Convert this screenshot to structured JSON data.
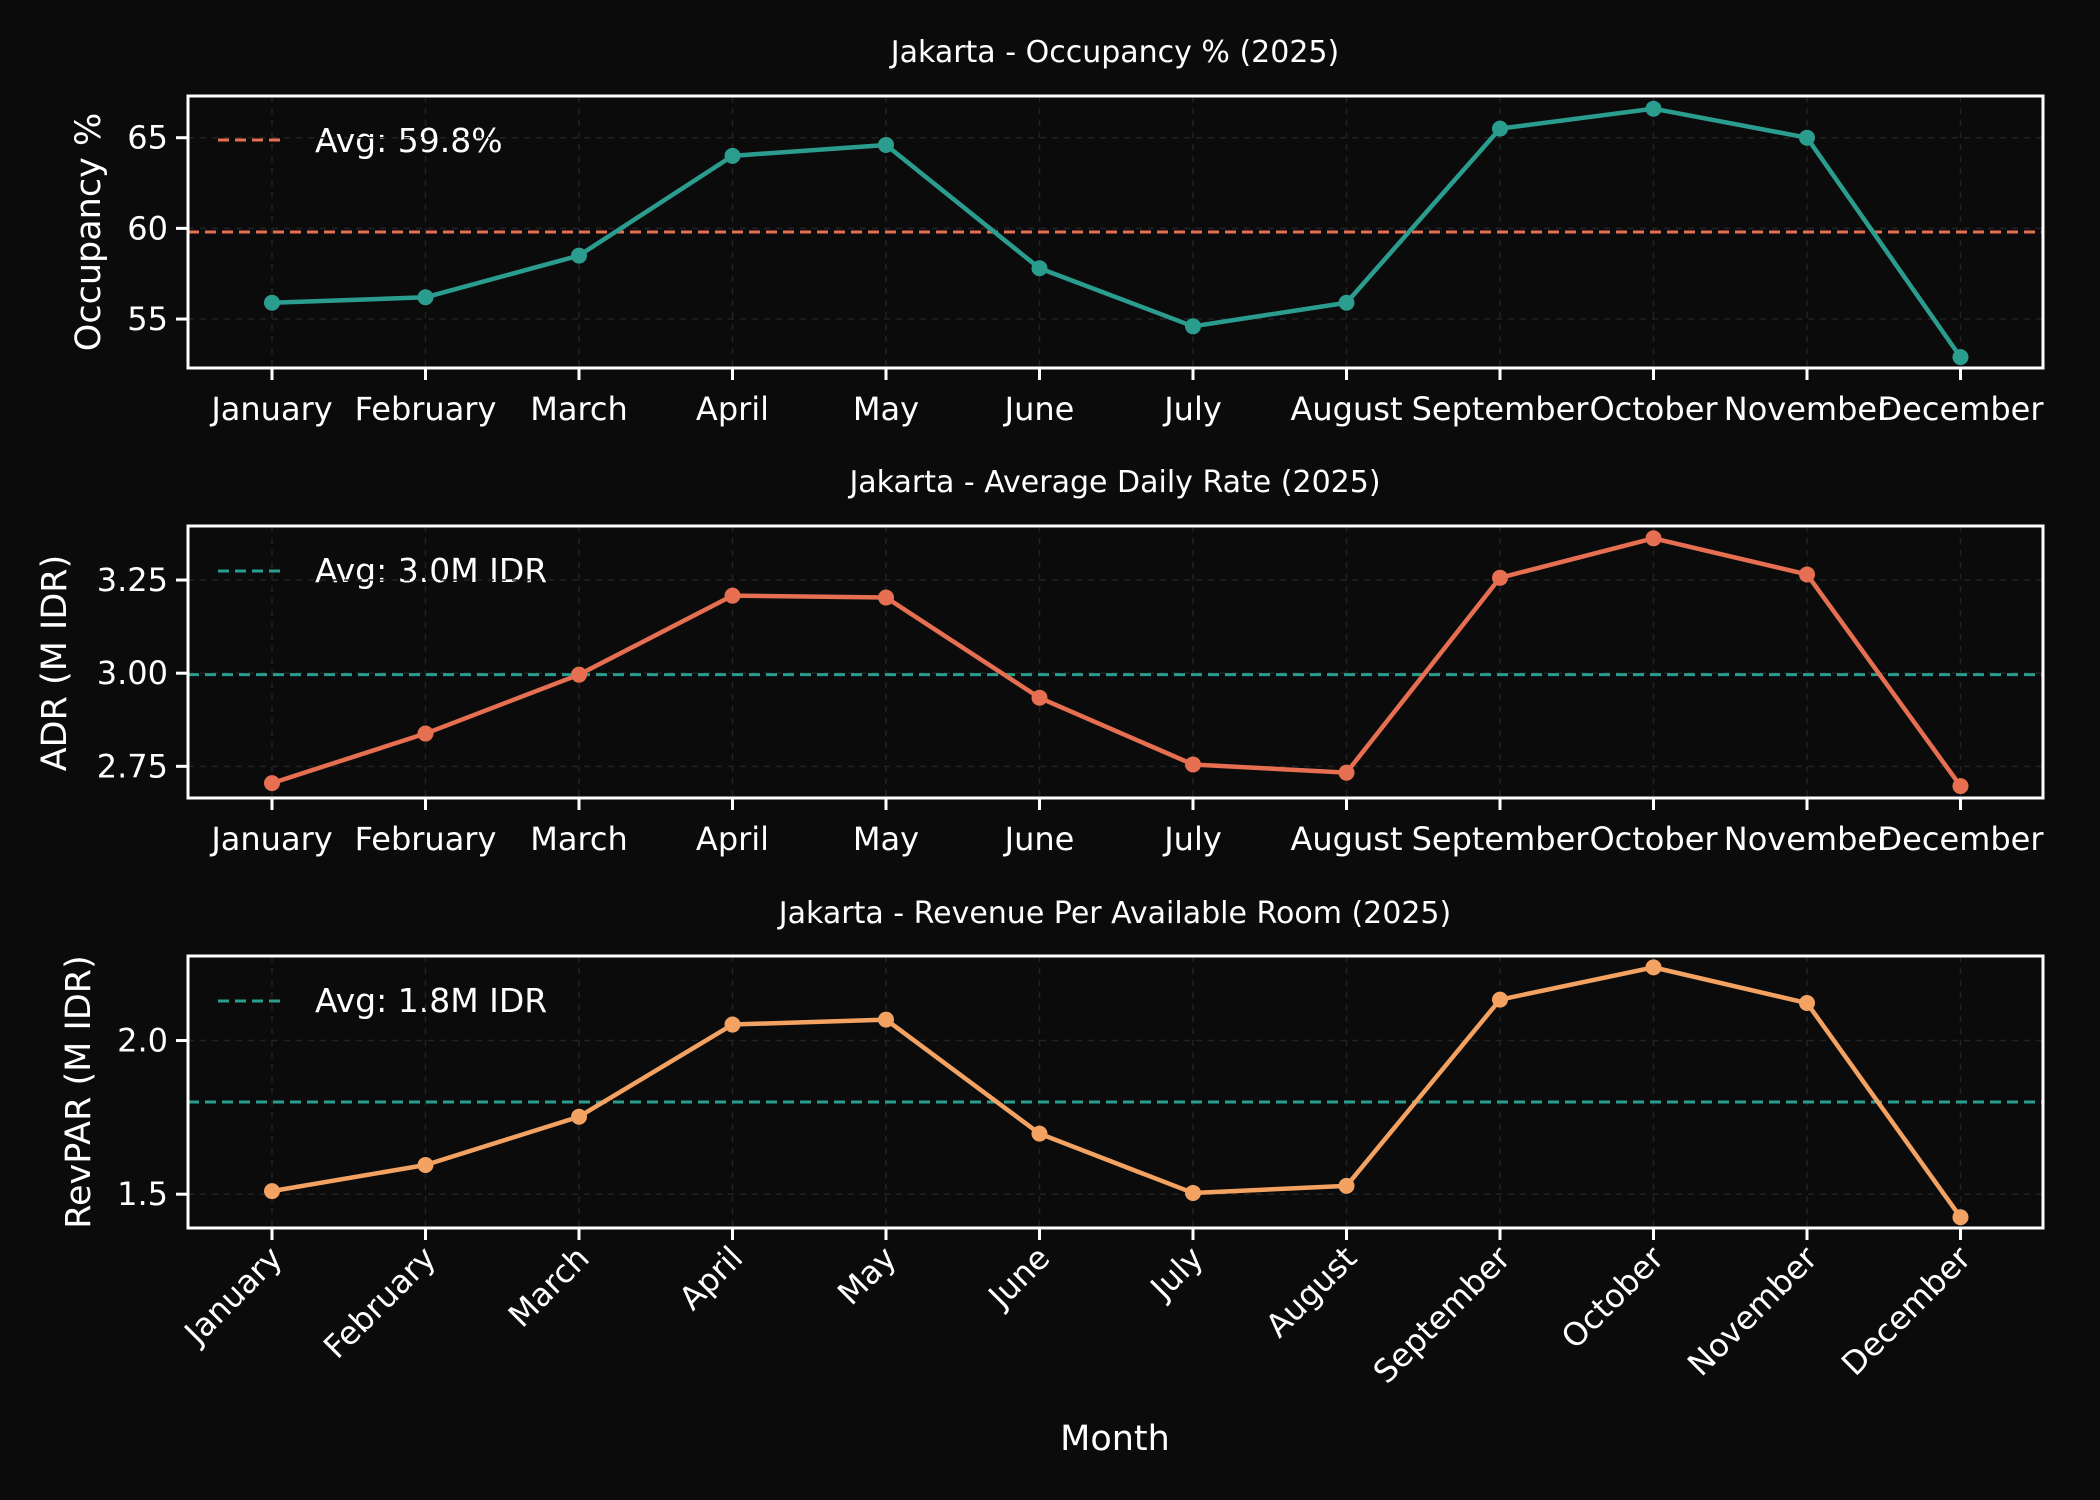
{
  "chart_data": [
    {
      "type": "line",
      "title": "Jakarta - Occupancy % (2025)",
      "xlabel": "",
      "ylabel": "Occupancy %",
      "categories": [
        "January",
        "February",
        "March",
        "April",
        "May",
        "June",
        "July",
        "August",
        "September",
        "October",
        "November",
        "December"
      ],
      "series": [
        {
          "values": [
            55.9,
            56.2,
            58.5,
            64.0,
            64.6,
            57.8,
            54.6,
            55.9,
            65.5,
            66.6,
            65.0,
            52.9
          ],
          "color": "#2a9d8f"
        }
      ],
      "average": {
        "value": 59.8,
        "label": "Avg: 59.8%",
        "color": "#e76f51"
      },
      "ylim": [
        52.3,
        67.3
      ],
      "yticks": [
        55,
        60,
        65
      ],
      "ytick_labels": [
        "55",
        "60",
        "65"
      ],
      "grid": true,
      "legend": "top-left"
    },
    {
      "type": "line",
      "title": "Jakarta - Average Daily Rate (2025)",
      "xlabel": "",
      "ylabel": "ADR (M IDR)",
      "categories": [
        "January",
        "February",
        "March",
        "April",
        "May",
        "June",
        "July",
        "August",
        "September",
        "October",
        "November",
        "December"
      ],
      "series": [
        {
          "values": [
            2.705,
            2.838,
            2.996,
            3.208,
            3.203,
            2.934,
            2.755,
            2.733,
            3.256,
            3.362,
            3.265,
            2.697
          ],
          "color": "#e76f51"
        }
      ],
      "average": {
        "value": 2.996,
        "label": "Avg: 3.0M IDR",
        "color": "#2a9d8f"
      },
      "ylim": [
        2.665,
        3.395
      ],
      "yticks": [
        2.75,
        3.0,
        3.25
      ],
      "ytick_labels": [
        "2.75",
        "3.00",
        "3.25"
      ],
      "grid": true,
      "legend": "top-left"
    },
    {
      "type": "line",
      "title": "Jakarta - Revenue Per Available Room (2025)",
      "xlabel": "Month",
      "ylabel": "RevPAR (M IDR)",
      "categories": [
        "January",
        "February",
        "March",
        "April",
        "May",
        "June",
        "July",
        "August",
        "September",
        "October",
        "November",
        "December"
      ],
      "series": [
        {
          "values": [
            1.51,
            1.595,
            1.752,
            2.052,
            2.068,
            1.697,
            1.504,
            1.527,
            2.133,
            2.238,
            2.122,
            1.425
          ],
          "color": "#f4a261"
        }
      ],
      "average": {
        "value": 1.8,
        "label": "Avg: 1.8M IDR",
        "color": "#2a9d8f"
      },
      "ylim": [
        1.39,
        2.275
      ],
      "yticks": [
        1.5,
        2.0
      ],
      "ytick_labels": [
        "1.5",
        "2.0"
      ],
      "grid": true,
      "legend": "top-left",
      "xtick_rotation": 45
    }
  ]
}
